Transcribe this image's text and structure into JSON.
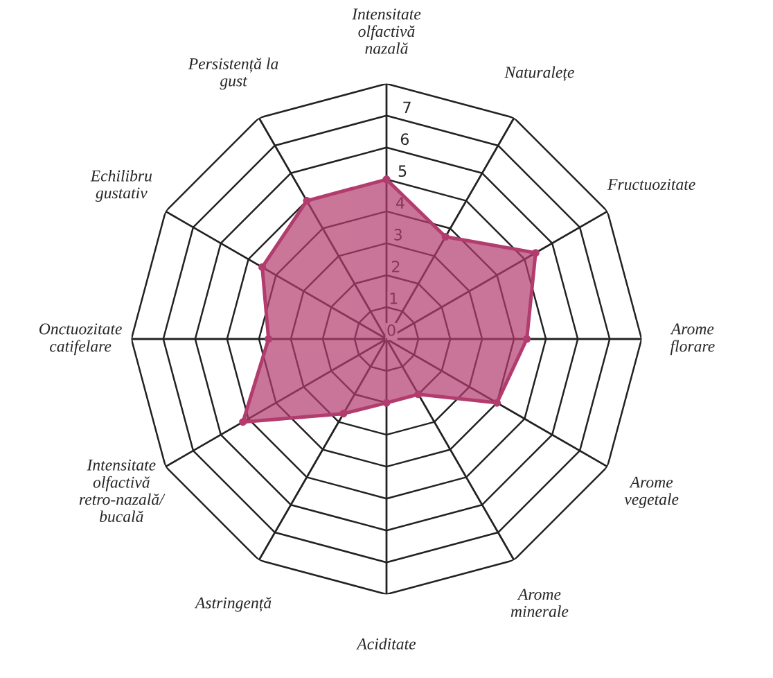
{
  "chart_data": {
    "type": "radar",
    "categories": [
      "Intensitate\nolfactivă\nnazală",
      "Naturalețe",
      "Fructuozitate",
      "Arome\nflorare",
      "Arome\nvegetale",
      "Arome\nminerale",
      "Aciditate",
      "Astringență",
      "Intensitate\nolfactivă\nretro-nazală/\nbucală",
      "Onctuozitate\ncatifelare",
      "Echilibru\ngustativ",
      "Persistență la\ngust"
    ],
    "series": [
      {
        "color": "#b23c6e",
        "values": [
          5,
          3.7,
          5.4,
          4.4,
          4,
          2,
          2,
          2.7,
          5.2,
          3.7,
          4.5,
          5
        ]
      }
    ],
    "ylim": [
      0,
      8
    ],
    "yticks": [
      0,
      1,
      2,
      3,
      4,
      5,
      6,
      7
    ],
    "grid": true,
    "marker": "circle"
  }
}
